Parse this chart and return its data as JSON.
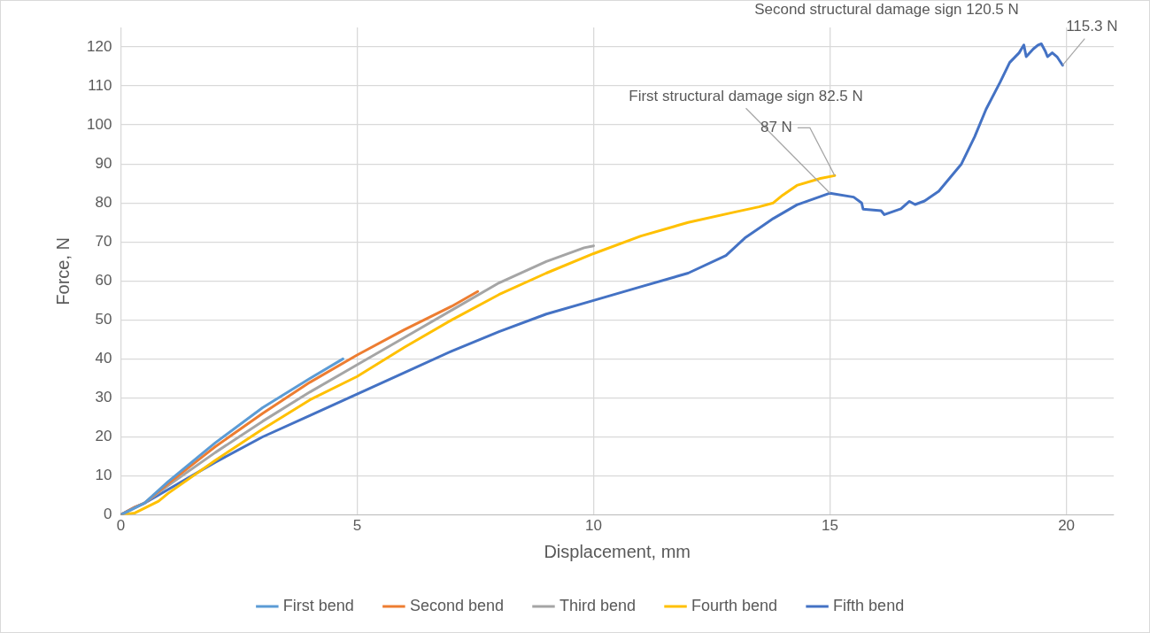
{
  "chart_data": {
    "type": "line",
    "xlabel": "Displacement, mm",
    "ylabel": "Force, N",
    "xlim": [
      0,
      21
    ],
    "xticks": [
      0,
      5,
      10,
      15,
      20
    ],
    "ylim": [
      0,
      125
    ],
    "yticks": [
      0,
      10,
      20,
      30,
      40,
      50,
      60,
      70,
      80,
      90,
      100,
      110,
      120
    ],
    "grid": true,
    "legend": "bottom",
    "marker": "none",
    "line_style": "solid",
    "series": [
      {
        "name": "First bend",
        "color": "#5b9bd5",
        "x": [
          0,
          0.5,
          1,
          2,
          3,
          4,
          4.7
        ],
        "values": [
          0,
          3,
          8.5,
          18.5,
          27.5,
          35,
          40
        ]
      },
      {
        "name": "Second bend",
        "color": "#ed7d31",
        "x": [
          0,
          0.3,
          0.5,
          1,
          2,
          3,
          4,
          5,
          6,
          7,
          7.55
        ],
        "values": [
          0,
          2,
          3,
          8,
          17.5,
          26,
          34,
          41,
          47.5,
          53.5,
          57.3
        ]
      },
      {
        "name": "Third bend",
        "color": "#a5a5a5",
        "x": [
          0,
          0.5,
          1,
          2,
          3,
          4,
          5,
          6,
          7,
          8,
          9,
          9.8,
          10
        ],
        "values": [
          0,
          3,
          7.5,
          16,
          24,
          31.5,
          38.5,
          45.5,
          52.5,
          59.5,
          65,
          68.5,
          69
        ]
      },
      {
        "name": "Fourth bend",
        "color": "#ffc000",
        "x": [
          0,
          0.3,
          0.8,
          1,
          2,
          3,
          4,
          5,
          6,
          7,
          8,
          9,
          10,
          11,
          12,
          13,
          13.5,
          13.8,
          14,
          14.3,
          14.8,
          15.1
        ],
        "values": [
          0,
          0.5,
          3.5,
          5.5,
          14,
          22,
          29.5,
          35.5,
          43,
          50,
          56.5,
          62,
          67,
          71.5,
          75,
          77.7,
          79,
          80,
          82,
          84.5,
          86.3,
          87
        ]
      },
      {
        "name": "Fifth bend",
        "color": "#4472c4",
        "x": [
          0,
          0.3,
          0.5,
          1,
          2,
          3,
          4,
          5,
          6,
          7,
          8,
          9,
          10,
          11,
          12,
          12.8,
          13.2,
          13.8,
          14.3,
          15,
          15.5,
          15.67,
          15.7,
          16.08,
          16.15,
          16.5,
          16.68,
          16.8,
          17,
          17.3,
          17.78,
          18.06,
          18.3,
          18.6,
          18.8,
          19,
          19.1,
          19.15,
          19.3,
          19.4,
          19.47,
          19.55,
          19.6,
          19.7,
          19.8,
          19.92
        ],
        "values": [
          0,
          2,
          3,
          6.5,
          13.5,
          20,
          25.5,
          31,
          36.5,
          42,
          47,
          51.5,
          55,
          58.5,
          62,
          66.5,
          71,
          76,
          79.5,
          82.5,
          81.5,
          80,
          78.4,
          78,
          77,
          78.5,
          80.4,
          79.6,
          80.5,
          83,
          90,
          97,
          104,
          111,
          116,
          118.5,
          120.5,
          117.5,
          119.5,
          120.5,
          120.8,
          119,
          117.5,
          118.5,
          117.5,
          115.3
        ]
      }
    ],
    "annotations": [
      {
        "text": "Second structural damage sign 120.5 N",
        "x": 19.1,
        "y": 120.5
      },
      {
        "text": "115.3 N",
        "x": 19.92,
        "y": 115.3
      },
      {
        "text": "First structural damage sign 82.5 N",
        "x": 15,
        "y": 82.5
      },
      {
        "text": "87 N",
        "x": 15.1,
        "y": 87
      }
    ]
  }
}
